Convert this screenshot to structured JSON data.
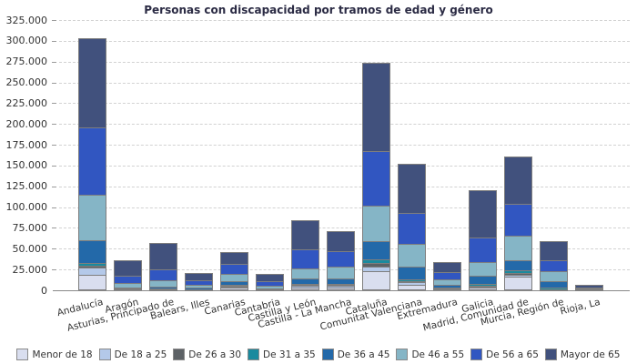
{
  "title": "Personas con discapacidad por tramos de edad y género",
  "y_axis": {
    "tick_labels": [
      "0",
      "25.000",
      "50.000",
      "75.000",
      "100.000",
      "125.000",
      "150.000",
      "175.000",
      "200.000",
      "225.000",
      "250.000",
      "275.000",
      "300.000",
      "325.000"
    ]
  },
  "chart_data": {
    "type": "bar",
    "stacked": true,
    "title": "Personas con discapacidad por tramos de edad y género",
    "xlabel": "",
    "ylabel": "",
    "ylim": [
      0,
      325000
    ],
    "y_tick_step": 25000,
    "grid": "horizontal-dashed",
    "legend_position": "bottom",
    "categories": [
      "Andalucía",
      "Aragón",
      "Asturias, Principado de",
      "Balears, Illes",
      "Canarias",
      "Cantabria",
      "Castilla y León",
      "Castilla - La Mancha",
      "Cataluña",
      "Comunitat Valenciana",
      "Extremadura",
      "Galicia",
      "Madrid, Comunidad de",
      "Murcia, Región de",
      "Rioja, La"
    ],
    "series": [
      {
        "name": "Menor de 18",
        "color": "#d9deef",
        "values": [
          18600,
          1800,
          1400,
          1400,
          2800,
          1300,
          3300,
          3800,
          22700,
          6200,
          2100,
          3000,
          16400,
          1600,
          400
        ]
      },
      {
        "name": "De 18 a 25",
        "color": "#b4c9e9",
        "values": [
          9600,
          1600,
          1200,
          1300,
          2900,
          1200,
          2900,
          3300,
          6600,
          4800,
          1900,
          2500,
          3700,
          1500,
          400
        ]
      },
      {
        "name": "De 26 a 30",
        "color": "#5d6266",
        "values": [
          3300,
          900,
          700,
          700,
          1500,
          600,
          1800,
          1900,
          5000,
          2500,
          1100,
          2100,
          3200,
          900,
          300
        ]
      },
      {
        "name": "De 31 a 35",
        "color": "#1a8a9e",
        "values": [
          4400,
          1200,
          2200,
          1100,
          2200,
          900,
          2600,
          2700,
          5100,
          3700,
          1500,
          3000,
          4100,
          2900,
          400
        ]
      },
      {
        "name": "De 36 a 45",
        "color": "#2369a9",
        "values": [
          28600,
          2500,
          3600,
          2800,
          5100,
          2200,
          7700,
          8000,
          22700,
          16400,
          4400,
          11000,
          13500,
          8400,
          1000
        ]
      },
      {
        "name": "De 46 a 55",
        "color": "#85b5c6",
        "values": [
          55900,
          6200,
          8800,
          4400,
          9800,
          4400,
          12700,
          15700,
          43800,
          28500,
          8000,
          17500,
          30300,
          13500,
          2200
        ]
      },
      {
        "name": "De 56 a 65",
        "color": "#3156c1",
        "values": [
          82100,
          10200,
          14600,
          6200,
          13600,
          6200,
          24500,
          20100,
          66400,
          38300,
          10200,
          31000,
          39100,
          13900,
          2500
        ]
      },
      {
        "name": "Mayor de 65",
        "color": "#41517d",
        "values": [
          108600,
          20200,
          32900,
          10300,
          15000,
          10200,
          36500,
          24800,
          106700,
          60300,
          13500,
          57700,
          58400,
          23800,
          4800
        ]
      }
    ]
  }
}
